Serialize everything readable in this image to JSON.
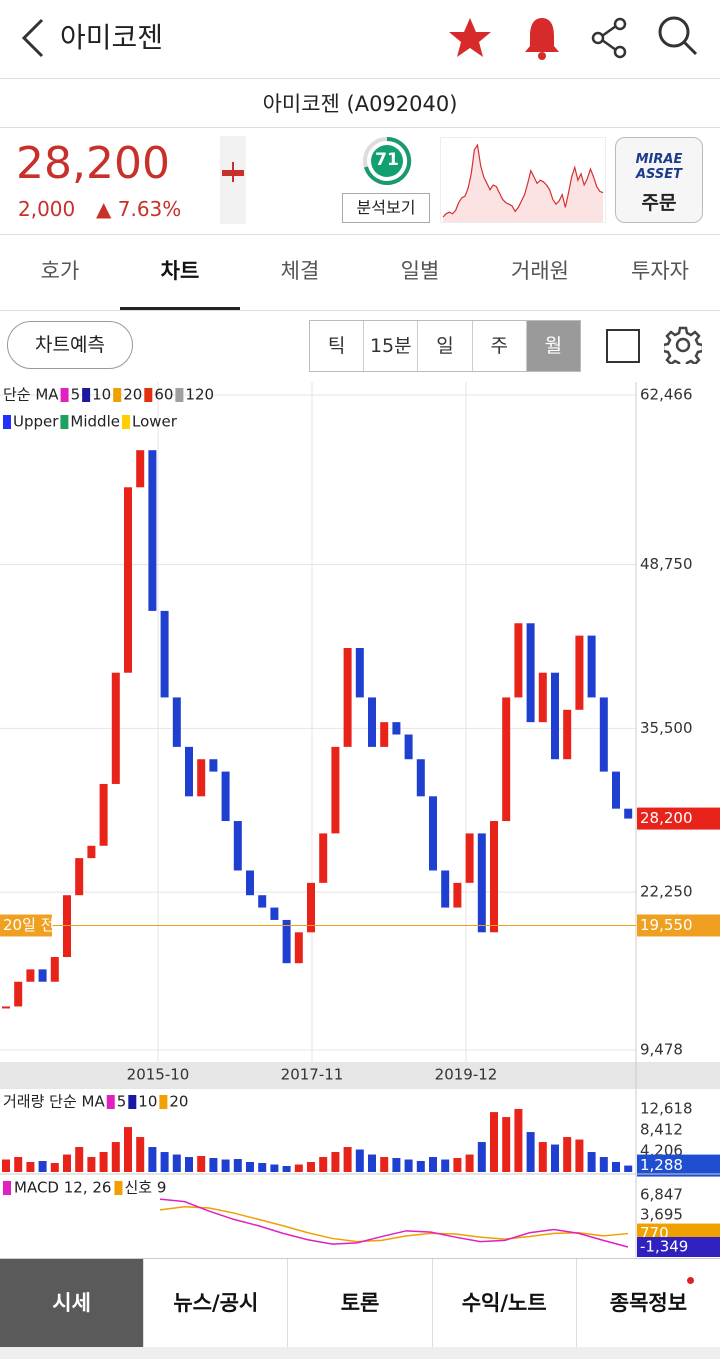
{
  "header": {
    "title": "아미코젠"
  },
  "stock": {
    "name": "아미코젠 (A092040)",
    "price": "28,200",
    "change": "2,000",
    "change_rate": "▲ 7.63%",
    "score": "71",
    "analysis_button": "분석보기",
    "order_brand": [
      "MIRAE",
      "ASSET"
    ],
    "order_button": "주문"
  },
  "tabs": [
    "호가",
    "차트",
    "체결",
    "일별",
    "거래원",
    "투자자"
  ],
  "active_tab": 1,
  "chart_predict": "차트예측",
  "periods": [
    "틱",
    "15분",
    "일",
    "주",
    "월"
  ],
  "active_period": 4,
  "nav": [
    "시세",
    "뉴스/공시",
    "토론",
    "수익/노트",
    "종목정보"
  ],
  "active_nav": 0,
  "chart_data": {
    "type": "candlestick",
    "ma_legend": {
      "label": "단순 MA",
      "series": [
        {
          "name": "5",
          "color": "#e020c0"
        },
        {
          "name": "10",
          "color": "#1a1aa0"
        },
        {
          "name": "20",
          "color": "#f0a000"
        },
        {
          "name": "60",
          "color": "#e03010"
        },
        {
          "name": "120",
          "color": "#a0a0a0"
        }
      ]
    },
    "band_legend": [
      {
        "name": "Upper",
        "color": "#2030ff"
      },
      {
        "name": "Middle",
        "color": "#20a060"
      },
      {
        "name": "Lower",
        "color": "#ffd000"
      }
    ],
    "x_labels": [
      "2015-10",
      "2017-11",
      "2019-12"
    ],
    "ylim": [
      9478,
      62466
    ],
    "yticks": [
      {
        "value": 62466,
        "label": "62,466"
      },
      {
        "value": 48750,
        "label": "48,750"
      },
      {
        "value": 35500,
        "label": "35,500"
      },
      {
        "value": 22250,
        "label": "22,250"
      },
      {
        "value": 9478,
        "label": "9,478"
      }
    ],
    "close": [
      13000,
      15000,
      16000,
      15000,
      17000,
      22000,
      25000,
      26000,
      31000,
      40000,
      55000,
      58000,
      45000,
      38000,
      34000,
      30000,
      33000,
      32000,
      28000,
      24000,
      22000,
      21000,
      20000,
      16500,
      19000,
      23000,
      27000,
      34000,
      42000,
      38000,
      34000,
      36000,
      35000,
      33000,
      30000,
      24000,
      21000,
      23000,
      27000,
      19000,
      28000,
      38000,
      44000,
      36000,
      40000,
      33000,
      37000,
      43000,
      38000,
      32000,
      29000,
      28200
    ],
    "current_price": {
      "value": 28200,
      "label": "28,200",
      "color": "#e8231a"
    },
    "reference_price": {
      "name": "20일 전",
      "value": 19550,
      "label": "19,550",
      "color": "#f0a020"
    },
    "volume": {
      "legend": {
        "label": "거래량 단순 MA",
        "series": [
          {
            "name": "5",
            "color": "#e020c0"
          },
          {
            "name": "10",
            "color": "#1a1aa0"
          },
          {
            "name": "20",
            "color": "#f0a000"
          }
        ]
      },
      "ylim": [
        0,
        12618
      ],
      "yticks": [
        {
          "value": 12618,
          "label": "12,618"
        },
        {
          "value": 8412,
          "label": "8,412"
        },
        {
          "value": 4206,
          "label": "4,206"
        }
      ],
      "values": [
        2500,
        3000,
        2000,
        2200,
        1800,
        3500,
        5000,
        3000,
        4000,
        6000,
        9000,
        7000,
        5000,
        4000,
        3500,
        3000,
        3200,
        2800,
        2500,
        2600,
        2000,
        1800,
        1500,
        1200,
        1500,
        2000,
        3000,
        4000,
        5000,
        4500,
        3500,
        3000,
        2800,
        2500,
        2200,
        3000,
        2500,
        2800,
        3500,
        6000,
        12000,
        11000,
        12618,
        8000,
        6000,
        5500,
        7000,
        6500,
        4000,
        3000,
        2000,
        1288
      ],
      "current": {
        "value": 1288,
        "label": "1,288",
        "color": "#1f4fd0"
      }
    },
    "macd": {
      "legend": {
        "label": "MACD 12, 26",
        "signal": "신호 9",
        "macd_color": "#e020c0",
        "signal_color": "#f0a000"
      },
      "yticks": [
        {
          "value": 6847,
          "label": "6,847"
        },
        {
          "value": 3695,
          "label": "3,695"
        }
      ],
      "macd": [
        6200,
        5800,
        4300,
        3000,
        2000,
        800,
        -200,
        -900,
        -700,
        300,
        1200,
        1000,
        200,
        -500,
        -300,
        900,
        1400,
        800,
        -300,
        -1349
      ],
      "signal": [
        4500,
        5000,
        4800,
        4000,
        3000,
        2000,
        900,
        0,
        -500,
        -300,
        400,
        800,
        700,
        200,
        -100,
        300,
        800,
        900,
        400,
        770
      ],
      "signal_tag": {
        "value": 770,
        "label": "770",
        "color": "#f0a000"
      },
      "macd_tag": {
        "value": -1349,
        "label": "-1,349",
        "color": "#3020c0"
      }
    }
  }
}
